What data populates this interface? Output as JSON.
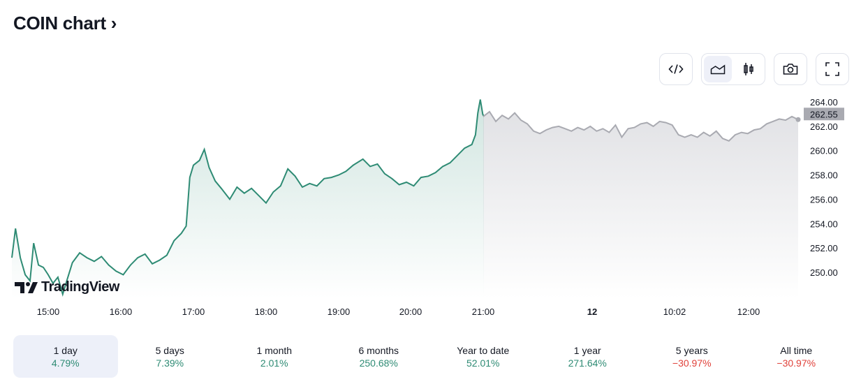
{
  "header": {
    "title": "COIN chart",
    "chevron": "›"
  },
  "toolbar": {
    "buttons": [
      {
        "icon": "embed-code-icon"
      },
      {
        "icon": "area-chart-icon",
        "active": true
      },
      {
        "icon": "candlestick-icon"
      },
      {
        "icon": "camera-icon"
      },
      {
        "icon": "fullscreen-icon"
      }
    ]
  },
  "watermark": "TradingView",
  "chart_data": {
    "type": "area",
    "title": "",
    "y_ticks": [
      "264.00",
      "262.00",
      "260.00",
      "258.00",
      "256.00",
      "254.00",
      "252.00",
      "250.00"
    ],
    "ylim": [
      248,
      264.8
    ],
    "x_ticks": [
      "15:00",
      "16:00",
      "17:00",
      "18:00",
      "19:00",
      "20:00",
      "21:00",
      "12",
      "10:02",
      "12:00"
    ],
    "last_price": "262.55",
    "colors": {
      "session": "#2e8b74",
      "extended": "#a9aab1",
      "price_label_bg": "#a9aab1"
    },
    "session": [
      [
        "14:30",
        251.2
      ],
      [
        "14:33",
        253.6
      ],
      [
        "14:37",
        251.2
      ],
      [
        "14:41",
        249.8
      ],
      [
        "14:45",
        249.3
      ],
      [
        "14:48",
        252.4
      ],
      [
        "14:52",
        250.6
      ],
      [
        "14:56",
        250.4
      ],
      [
        "15:00",
        249.8
      ],
      [
        "15:04",
        249.1
      ],
      [
        "15:08",
        249.6
      ],
      [
        "15:12",
        248.2
      ],
      [
        "15:16",
        249.5
      ],
      [
        "15:20",
        250.8
      ],
      [
        "15:26",
        251.6
      ],
      [
        "15:32",
        251.2
      ],
      [
        "15:38",
        250.9
      ],
      [
        "15:44",
        251.3
      ],
      [
        "15:50",
        250.6
      ],
      [
        "15:56",
        250.1
      ],
      [
        "16:02",
        249.8
      ],
      [
        "16:08",
        250.6
      ],
      [
        "16:14",
        251.2
      ],
      [
        "16:20",
        251.5
      ],
      [
        "16:26",
        250.7
      ],
      [
        "16:32",
        251.0
      ],
      [
        "16:38",
        251.4
      ],
      [
        "16:44",
        252.6
      ],
      [
        "16:50",
        253.2
      ],
      [
        "16:54",
        253.8
      ],
      [
        "16:57",
        257.8
      ],
      [
        "17:00",
        258.8
      ],
      [
        "17:05",
        259.2
      ],
      [
        "17:09",
        260.1
      ],
      [
        "17:13",
        258.6
      ],
      [
        "17:18",
        257.5
      ],
      [
        "17:23",
        256.9
      ],
      [
        "17:30",
        256.0
      ],
      [
        "17:36",
        257.0
      ],
      [
        "17:42",
        256.5
      ],
      [
        "17:48",
        256.9
      ],
      [
        "17:54",
        256.3
      ],
      [
        "18:00",
        255.7
      ],
      [
        "18:06",
        256.6
      ],
      [
        "18:12",
        257.1
      ],
      [
        "18:18",
        258.5
      ],
      [
        "18:24",
        257.9
      ],
      [
        "18:30",
        257.0
      ],
      [
        "18:36",
        257.3
      ],
      [
        "18:42",
        257.1
      ],
      [
        "18:48",
        257.7
      ],
      [
        "18:54",
        257.8
      ],
      [
        "19:00",
        258.0
      ],
      [
        "19:06",
        258.3
      ],
      [
        "19:12",
        258.8
      ],
      [
        "19:20",
        259.3
      ],
      [
        "19:26",
        258.7
      ],
      [
        "19:32",
        258.9
      ],
      [
        "19:38",
        258.1
      ],
      [
        "19:44",
        257.7
      ],
      [
        "19:50",
        257.2
      ],
      [
        "19:56",
        257.4
      ],
      [
        "20:02",
        257.1
      ],
      [
        "20:08",
        257.8
      ],
      [
        "20:14",
        257.9
      ],
      [
        "20:20",
        258.2
      ],
      [
        "20:26",
        258.7
      ],
      [
        "20:32",
        259.0
      ],
      [
        "20:38",
        259.6
      ],
      [
        "20:44",
        260.2
      ],
      [
        "20:50",
        260.5
      ],
      [
        "20:53",
        261.3
      ],
      [
        "20:55",
        263.1
      ],
      [
        "20:57",
        264.2
      ],
      [
        "20:59",
        263.0
      ],
      [
        "21:00",
        262.8
      ]
    ],
    "extended": [
      262.8,
      263.2,
      262.4,
      262.9,
      262.6,
      263.1,
      262.5,
      262.2,
      261.6,
      261.4,
      261.7,
      261.9,
      262.0,
      261.8,
      261.6,
      261.9,
      261.7,
      262.0,
      261.6,
      261.8,
      261.5,
      262.1,
      261.1,
      261.8,
      261.9,
      262.2,
      262.3,
      262.0,
      262.4,
      262.3,
      262.1,
      261.3,
      261.1,
      261.3,
      261.1,
      261.5,
      261.2,
      261.6,
      261.0,
      260.8,
      261.3,
      261.5,
      261.4,
      261.7,
      261.8,
      262.2,
      262.4,
      262.6,
      262.5,
      262.8,
      262.55
    ]
  },
  "ranges": [
    {
      "label": "1 day",
      "change": "4.79%",
      "dir": "up",
      "active": true
    },
    {
      "label": "5 days",
      "change": "7.39%",
      "dir": "up"
    },
    {
      "label": "1 month",
      "change": "2.01%",
      "dir": "up"
    },
    {
      "label": "6 months",
      "change": "250.68%",
      "dir": "up"
    },
    {
      "label": "Year to date",
      "change": "52.01%",
      "dir": "up"
    },
    {
      "label": "1 year",
      "change": "271.64%",
      "dir": "up"
    },
    {
      "label": "5 years",
      "change": "−30.97%",
      "dir": "down"
    },
    {
      "label": "All time",
      "change": "−30.97%",
      "dir": "down"
    }
  ]
}
